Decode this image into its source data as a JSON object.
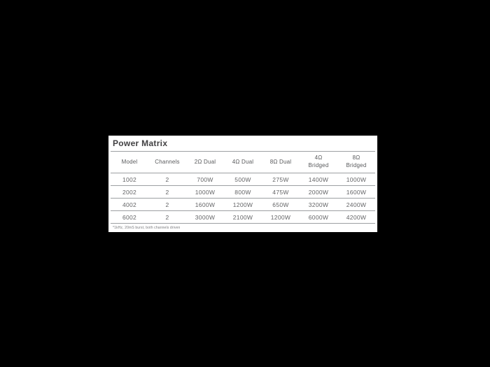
{
  "page": {
    "background": "#000000",
    "panel_background": "#ffffff"
  },
  "panel": {
    "title": "Power Matrix",
    "table": {
      "columns": [
        "Model",
        "Channels",
        "2Ω Dual",
        "4Ω Dual",
        "8Ω Dual",
        "4Ω\nBridged",
        "8Ω\nBridged"
      ],
      "rows": [
        [
          "1002",
          "2",
          "700W",
          "500W",
          "275W",
          "1400W",
          "1000W"
        ],
        [
          "2002",
          "2",
          "1000W",
          "800W",
          "475W",
          "2000W",
          "1600W"
        ],
        [
          "4002",
          "2",
          "1600W",
          "1200W",
          "650W",
          "3200W",
          "2400W"
        ],
        [
          "6002",
          "2",
          "3000W",
          "2100W",
          "1200W",
          "6000W",
          "4200W"
        ]
      ],
      "footnote": "*1kHz, 20mS burst, both channels driven"
    },
    "colors": {
      "title": "#414042",
      "header_text": "#58595b",
      "cell_text": "#636466",
      "line": "#9d9fa2"
    }
  }
}
